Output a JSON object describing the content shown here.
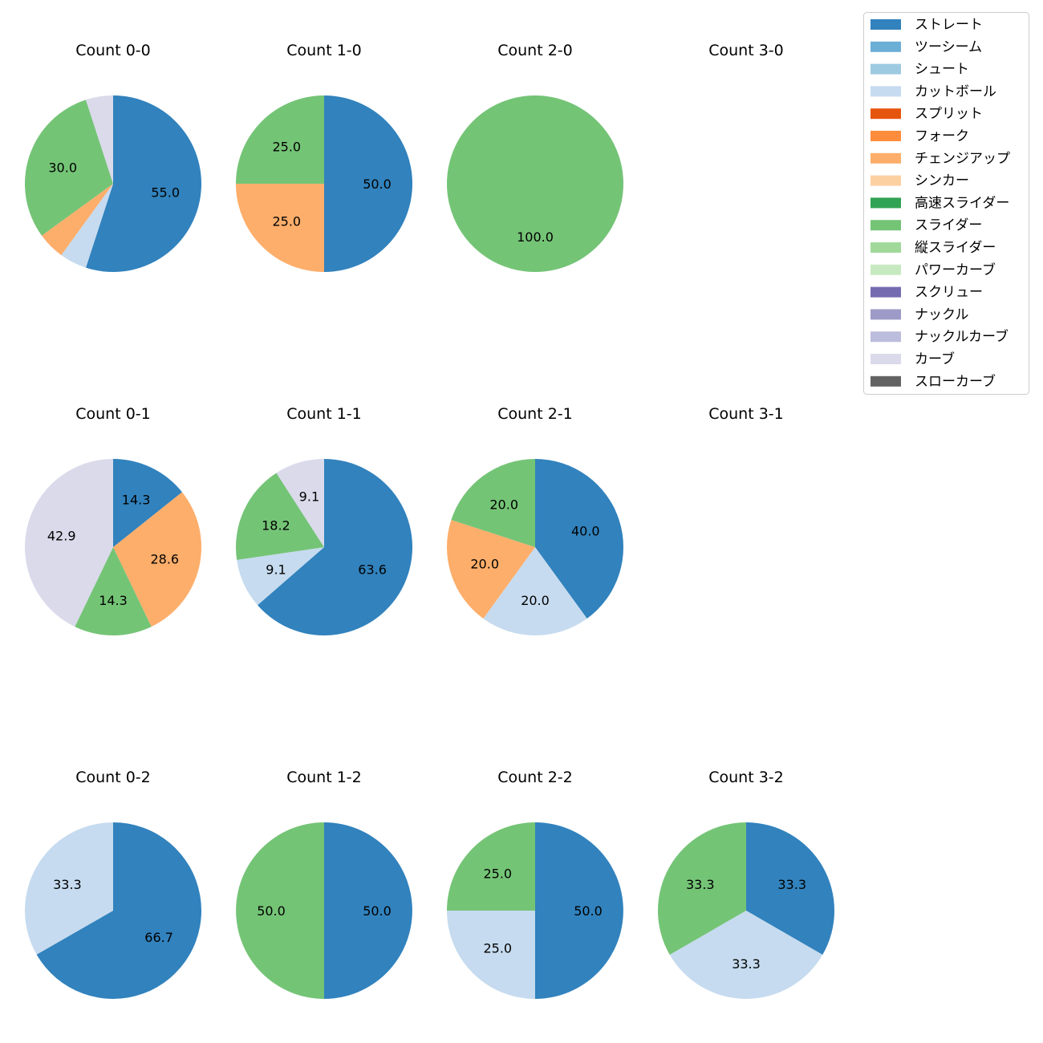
{
  "chart_data": {
    "type": "pie",
    "legend_position": "top-right",
    "categories": [
      "ストレート",
      "ツーシーム",
      "シュート",
      "カットボール",
      "スプリット",
      "フォーク",
      "チェンジアップ",
      "シンカー",
      "高速スライダー",
      "スライダー",
      "縦スライダー",
      "パワーカーブ",
      "スクリュー",
      "ナックル",
      "ナックルカーブ",
      "カーブ",
      "スローカーブ"
    ],
    "colors": [
      "#3182bd",
      "#6baed6",
      "#9ecae1",
      "#c6dbef",
      "#e6550d",
      "#fd8d3c",
      "#fdae6b",
      "#fdd0a2",
      "#31a354",
      "#74c476",
      "#a1d99b",
      "#c7e9c0",
      "#756bb1",
      "#9e9ac8",
      "#bcbddc",
      "#dadaeb",
      "#636363"
    ],
    "charts": [
      {
        "title": "Count 0-0",
        "slices": [
          {
            "category": "ストレート",
            "value": 55.0,
            "label": "55.0"
          },
          {
            "category": "カットボール",
            "value": 5.0,
            "label": ""
          },
          {
            "category": "チェンジアップ",
            "value": 5.0,
            "label": ""
          },
          {
            "category": "スライダー",
            "value": 30.0,
            "label": "30.0"
          },
          {
            "category": "カーブ",
            "value": 5.0,
            "label": ""
          }
        ]
      },
      {
        "title": "Count 1-0",
        "slices": [
          {
            "category": "ストレート",
            "value": 50.0,
            "label": "50.0"
          },
          {
            "category": "チェンジアップ",
            "value": 25.0,
            "label": "25.0"
          },
          {
            "category": "スライダー",
            "value": 25.0,
            "label": "25.0"
          }
        ]
      },
      {
        "title": "Count 2-0",
        "slices": [
          {
            "category": "スライダー",
            "value": 100.0,
            "label": "100.0"
          }
        ]
      },
      {
        "title": "Count 3-0",
        "slices": []
      },
      {
        "title": "Count 0-1",
        "slices": [
          {
            "category": "ストレート",
            "value": 14.3,
            "label": "14.3"
          },
          {
            "category": "チェンジアップ",
            "value": 28.6,
            "label": "28.6"
          },
          {
            "category": "スライダー",
            "value": 14.3,
            "label": "14.3"
          },
          {
            "category": "カーブ",
            "value": 42.9,
            "label": "42.9"
          }
        ]
      },
      {
        "title": "Count 1-1",
        "slices": [
          {
            "category": "ストレート",
            "value": 63.6,
            "label": "63.6"
          },
          {
            "category": "カットボール",
            "value": 9.1,
            "label": "9.1"
          },
          {
            "category": "スライダー",
            "value": 18.2,
            "label": "18.2"
          },
          {
            "category": "カーブ",
            "value": 9.1,
            "label": "9.1"
          }
        ]
      },
      {
        "title": "Count 2-1",
        "slices": [
          {
            "category": "ストレート",
            "value": 40.0,
            "label": "40.0"
          },
          {
            "category": "カットボール",
            "value": 20.0,
            "label": "20.0"
          },
          {
            "category": "チェンジアップ",
            "value": 20.0,
            "label": "20.0"
          },
          {
            "category": "スライダー",
            "value": 20.0,
            "label": "20.0"
          }
        ]
      },
      {
        "title": "Count 3-1",
        "slices": []
      },
      {
        "title": "Count 0-2",
        "slices": [
          {
            "category": "ストレート",
            "value": 66.7,
            "label": "66.7"
          },
          {
            "category": "カットボール",
            "value": 33.3,
            "label": "33.3"
          }
        ]
      },
      {
        "title": "Count 1-2",
        "slices": [
          {
            "category": "ストレート",
            "value": 50.0,
            "label": "50.0"
          },
          {
            "category": "スライダー",
            "value": 50.0,
            "label": "50.0"
          }
        ]
      },
      {
        "title": "Count 2-2",
        "slices": [
          {
            "category": "ストレート",
            "value": 50.0,
            "label": "50.0"
          },
          {
            "category": "カットボール",
            "value": 25.0,
            "label": "25.0"
          },
          {
            "category": "スライダー",
            "value": 25.0,
            "label": "25.0"
          }
        ]
      },
      {
        "title": "Count 3-2",
        "slices": [
          {
            "category": "ストレート",
            "value": 33.3,
            "label": "33.3"
          },
          {
            "category": "カットボール",
            "value": 33.3,
            "label": "33.3"
          },
          {
            "category": "スライダー",
            "value": 33.3,
            "label": "33.3"
          }
        ]
      }
    ]
  }
}
